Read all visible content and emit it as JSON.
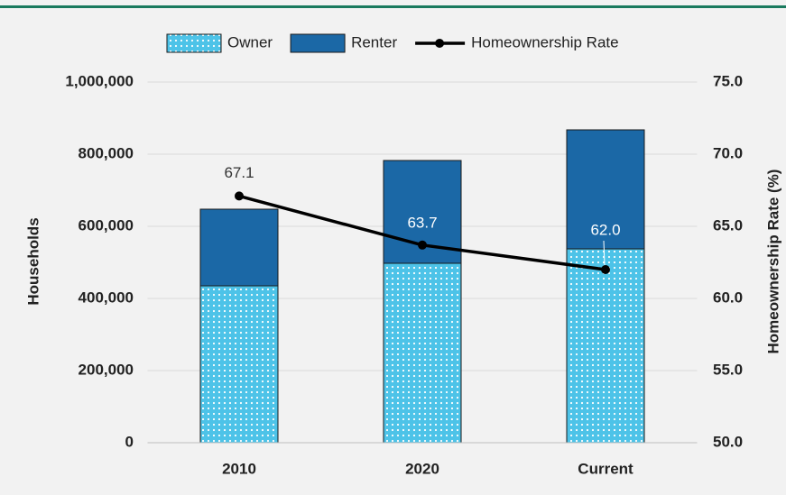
{
  "chart_data": {
    "type": "bar",
    "stacked": true,
    "categories": [
      "2010",
      "2020",
      "Current"
    ],
    "series": [
      {
        "name": "Owner",
        "color": "#4dc3e8",
        "pattern": "dots",
        "values": [
          435000,
          497500,
          537500
        ]
      },
      {
        "name": "Renter",
        "color": "#1b68a6",
        "values": [
          212500,
          285000,
          330000
        ]
      },
      {
        "name": "Homeownership Rate",
        "type": "line",
        "axis": "y2",
        "color": "#000000",
        "values": [
          67.1,
          63.7,
          62.0
        ],
        "value_labels": [
          "67.1",
          "63.7",
          "62.0"
        ]
      }
    ],
    "ylabel": "Households",
    "y2label": "Homeownership Rate (%)",
    "ylim": [
      0,
      1000000
    ],
    "yticks": [
      0,
      {
        "value": 200000,
        "label": "200,000"
      },
      {
        "value": 400000,
        "label": "400,000"
      },
      {
        "value": 600000,
        "label": "600,000"
      },
      {
        "value": 800000,
        "label": "800,000"
      },
      {
        "value": 1000000,
        "label": "1,000,000"
      }
    ],
    "y2lim": [
      50,
      75
    ],
    "y2ticks": [
      {
        "value": 50,
        "label": "50.0"
      },
      {
        "value": 55,
        "label": "55.0"
      },
      {
        "value": 60,
        "label": "60.0"
      },
      {
        "value": 65,
        "label": "65.0"
      },
      {
        "value": 70,
        "label": "70.0"
      },
      {
        "value": 75,
        "label": "75.0"
      }
    ],
    "grid": true,
    "legend": "top"
  }
}
